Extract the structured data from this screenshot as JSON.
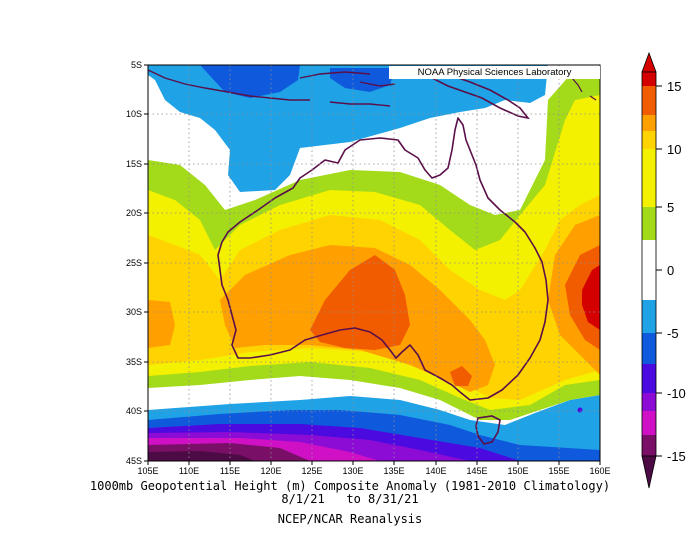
{
  "credit": "NOAA Physical Sciences Laboratory",
  "caption": {
    "title": "1000mb Geopotential Height (m) Composite Anomaly (1981-2010 Climatology)",
    "dates": "8/1/21   to 8/31/21",
    "source": "NCEP/NCAR Reanalysis"
  },
  "map": {
    "region": "Australia",
    "lat_range": [
      -45,
      -5
    ],
    "lon_range": [
      105,
      160
    ],
    "lat_ticks": [
      "5S",
      "10S",
      "15S",
      "20S",
      "25S",
      "30S",
      "35S",
      "40S",
      "45S"
    ],
    "lon_ticks": [
      "105E",
      "110E",
      "115E",
      "120E",
      "125E",
      "130E",
      "135E",
      "140E",
      "145E",
      "150E",
      "155E",
      "160E"
    ],
    "grid": "dotted"
  },
  "colorbar": {
    "levels": [
      "15",
      "10",
      "5",
      "0",
      "-5",
      "-10",
      "-15"
    ],
    "colors_top_to_bottom": [
      "#d40000",
      "#f25c00",
      "#ff9f00",
      "#ffd300",
      "#f3f000",
      "#a3db1b",
      "#ffffff",
      "#1fa2e6",
      "#0f5adc",
      "#4b0adf",
      "#8c0cd6",
      "#cf10c4",
      "#7a0f67",
      "#4d0b45"
    ]
  },
  "anomaly_colors": {
    "neg_strong": "#4d0b45",
    "neg_15": "#7a0f67",
    "neg_12": "#cf10c4",
    "neg_10": "#8c0cd6",
    "neg_8": "#4b0adf",
    "neg_6": "#0f5adc",
    "neg_3": "#1fa2e6",
    "zero": "#ffffff",
    "pos_3": "#a3db1b",
    "pos_6": "#f3f000",
    "pos_8": "#ffd300",
    "pos_10": "#ff9f00",
    "pos_12": "#f25c00",
    "pos_15": "#d40000"
  }
}
